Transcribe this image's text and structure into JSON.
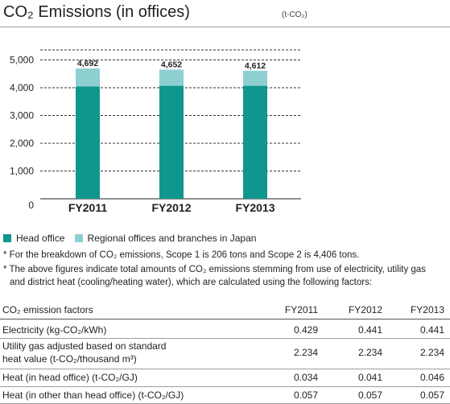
{
  "header": {
    "title": "CO₂ Emissions (in offices)",
    "unit": "(t-CO₂)"
  },
  "colors": {
    "head_office": "#0f968f",
    "regional": "#8ecfd2",
    "gridline": "#333333"
  },
  "chart_data": {
    "type": "bar",
    "stacked": true,
    "categories": [
      "FY2011",
      "FY2012",
      "FY2013"
    ],
    "series": [
      {
        "name": "Head office",
        "values": [
          4045,
          4070,
          4070
        ]
      },
      {
        "name": "Regional offices and branches in Japan",
        "values": [
          647,
          582,
          542
        ]
      }
    ],
    "totals": [
      "4,692",
      "4,652",
      "4,612"
    ],
    "total_values": [
      4692,
      4652,
      4612
    ],
    "yticks": [
      0,
      1000,
      2000,
      3000,
      4000,
      5000
    ],
    "ytick_labels": [
      "0",
      "1,000",
      "2,000",
      "3,000",
      "4,000",
      "5,000"
    ],
    "ylim": [
      0,
      5300
    ],
    "grid": "dashed",
    "legend": "bottom-left"
  },
  "notes": [
    "* For the breakdown of CO₂ emissions, Scope 1 is 206 tons and Scope 2 is 4,406 tons.",
    "* The above figures indicate total amounts of CO₂ emissions stemming from use of electricity, utility gas",
    "and district heat (cooling/heating water), which are calculated using the following factors:"
  ],
  "factors_table": {
    "header": {
      "label": "CO₂ emission factors",
      "cols": [
        "FY2011",
        "FY2012",
        "FY2013"
      ]
    },
    "rows": [
      {
        "label": "Electricity (kg-CO₂/kWh)",
        "values": [
          "0.429",
          "0.441",
          "0.441"
        ]
      },
      {
        "label": "Utility gas adjusted based on standard",
        "label2": "heat value (t-CO₂/thousand m³)",
        "values": [
          "2.234",
          "2.234",
          "2.234"
        ]
      },
      {
        "label": "Heat (in head office) (t-CO₂/GJ)",
        "values": [
          "0.034",
          "0.041",
          "0.046"
        ]
      },
      {
        "label": "Heat (in other than head office) (t-CO₂/GJ)",
        "values": [
          "0.057",
          "0.057",
          "0.057"
        ]
      }
    ]
  }
}
